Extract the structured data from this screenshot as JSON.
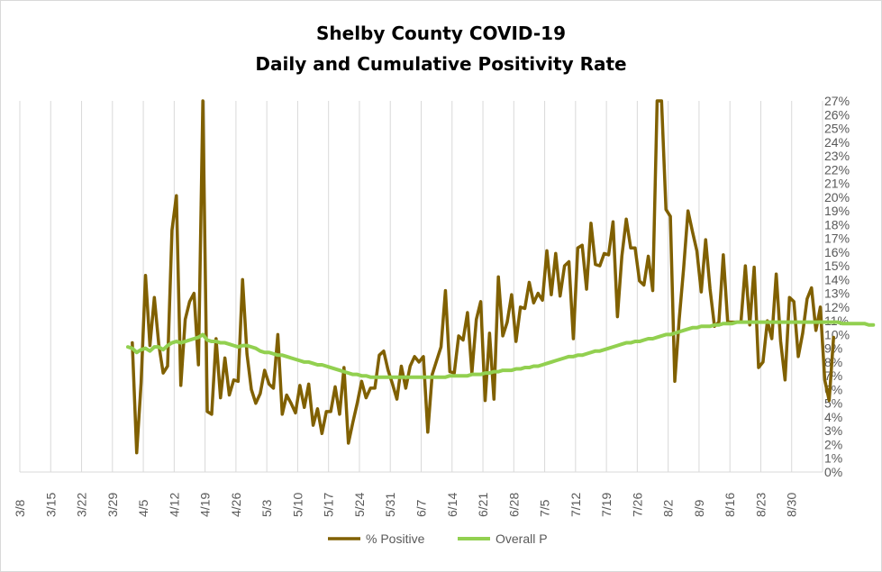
{
  "chart_data": {
    "type": "line",
    "title": "Shelby County COVID-19",
    "subtitle": "Daily and Cumulative Positivity Rate",
    "x_tick_labels": [
      "3/8",
      "3/15",
      "3/22",
      "3/29",
      "4/5",
      "4/12",
      "4/19",
      "4/26",
      "5/3",
      "5/10",
      "5/17",
      "5/24",
      "5/31",
      "6/7",
      "6/14",
      "6/21",
      "6/28",
      "7/5",
      "7/12",
      "7/19",
      "7/26",
      "8/2",
      "8/9",
      "8/16",
      "8/23",
      "8/30"
    ],
    "y_tick_labels": [
      "0%",
      "1%",
      "2%",
      "3%",
      "4%",
      "5%",
      "6%",
      "7%",
      "8%",
      "9%",
      "10%",
      "11%",
      "12%",
      "13%",
      "14%",
      "15%",
      "16%",
      "17%",
      "18%",
      "19%",
      "20%",
      "21%",
      "22%",
      "23%",
      "24%",
      "25%",
      "26%",
      "27%"
    ],
    "ylim": [
      0,
      27
    ],
    "y_axis_position": "right",
    "grid": "vertical",
    "legend": "bottom",
    "x_start": "3/8",
    "series": [
      {
        "name": "% Positive",
        "color": "#806000",
        "values": [
          null,
          null,
          null,
          null,
          null,
          null,
          null,
          null,
          null,
          null,
          null,
          null,
          null,
          null,
          null,
          null,
          null,
          null,
          null,
          null,
          null,
          null,
          null,
          null,
          null,
          9.4,
          1.4,
          6.5,
          14.3,
          9.2,
          12.7,
          9.3,
          7.2,
          7.7,
          17.6,
          20.1,
          6.3,
          11.1,
          12.4,
          13.0,
          7.8,
          27.0,
          4.4,
          4.2,
          9.7,
          5.4,
          8.3,
          5.6,
          6.7,
          6.6,
          14.0,
          8.6,
          6.0,
          5.0,
          5.7,
          7.4,
          6.4,
          6.1,
          10.0,
          4.2,
          5.6,
          5.0,
          4.3,
          6.3,
          4.7,
          6.4,
          3.4,
          4.6,
          2.8,
          4.4,
          4.4,
          6.2,
          4.2,
          7.6,
          2.1,
          3.6,
          5.0,
          6.6,
          5.4,
          6.1,
          6.1,
          8.5,
          8.8,
          7.4,
          6.4,
          5.3,
          7.7,
          6.1,
          7.7,
          8.4,
          8.0,
          8.4,
          2.9,
          7.1,
          8.1,
          9.1,
          13.2,
          7.3,
          7.2,
          9.9,
          9.6,
          11.6,
          7.2,
          11.1,
          12.4,
          5.2,
          10.1,
          5.3,
          14.2,
          9.9,
          10.9,
          12.9,
          9.5,
          12.0,
          11.9,
          13.8,
          12.3,
          13.0,
          12.5,
          16.1,
          12.9,
          15.9,
          12.8,
          15.0,
          15.3,
          9.7,
          16.3,
          16.5,
          13.3,
          18.1,
          15.1,
          15.0,
          15.9,
          15.8,
          18.2,
          11.3,
          15.7,
          18.4,
          16.3,
          16.3,
          13.9,
          13.6,
          15.7,
          13.2,
          27.0,
          27.0,
          19.1,
          18.6,
          6.6,
          11.1,
          14.8,
          19.0,
          17.5,
          16.1,
          13.1,
          16.9,
          13.3,
          10.6,
          10.9,
          15.8,
          10.9,
          10.9,
          10.9,
          10.9,
          15.0,
          10.7,
          14.9,
          7.6,
          8.0,
          11.0,
          9.7,
          14.4,
          9.5,
          6.7,
          12.7,
          12.4,
          8.4,
          10.1,
          12.6,
          13.4,
          10.3,
          12.0,
          6.7,
          5.2,
          9.8
        ]
      },
      {
        "name": "Overall P",
        "color": "#92d050",
        "values": [
          null,
          null,
          null,
          null,
          null,
          null,
          null,
          null,
          null,
          null,
          null,
          null,
          null,
          null,
          null,
          null,
          null,
          null,
          null,
          null,
          null,
          null,
          null,
          null,
          9.1,
          9.0,
          8.7,
          8.9,
          9.0,
          8.8,
          9.1,
          9.1,
          8.9,
          9.2,
          9.4,
          9.5,
          9.4,
          9.5,
          9.6,
          9.7,
          9.8,
          10.0,
          9.6,
          9.5,
          9.5,
          9.4,
          9.4,
          9.3,
          9.2,
          9.1,
          9.2,
          9.2,
          9.1,
          9.0,
          8.8,
          8.7,
          8.7,
          8.6,
          8.5,
          8.5,
          8.4,
          8.3,
          8.2,
          8.1,
          8.0,
          8.0,
          7.9,
          7.8,
          7.8,
          7.7,
          7.6,
          7.5,
          7.4,
          7.3,
          7.2,
          7.1,
          7.1,
          7.0,
          7.0,
          6.9,
          6.9,
          6.9,
          6.9,
          6.9,
          6.9,
          6.9,
          6.9,
          6.9,
          6.9,
          6.9,
          6.9,
          6.9,
          6.9,
          6.9,
          6.9,
          6.9,
          6.9,
          7.0,
          7.0,
          7.0,
          7.0,
          7.0,
          7.1,
          7.1,
          7.1,
          7.2,
          7.2,
          7.3,
          7.3,
          7.4,
          7.4,
          7.4,
          7.5,
          7.5,
          7.6,
          7.6,
          7.7,
          7.7,
          7.8,
          7.9,
          8.0,
          8.1,
          8.2,
          8.3,
          8.4,
          8.4,
          8.5,
          8.5,
          8.6,
          8.7,
          8.8,
          8.8,
          8.9,
          9.0,
          9.1,
          9.2,
          9.3,
          9.4,
          9.4,
          9.5,
          9.5,
          9.6,
          9.7,
          9.7,
          9.8,
          9.9,
          10.0,
          10.0,
          10.1,
          10.2,
          10.3,
          10.4,
          10.5,
          10.5,
          10.6,
          10.6,
          10.6,
          10.7,
          10.7,
          10.8,
          10.8,
          10.8,
          10.9,
          10.9,
          10.9,
          10.9,
          10.9,
          10.9,
          10.9,
          10.9,
          10.9,
          10.9,
          10.9,
          10.9,
          10.9,
          10.9,
          10.9,
          10.9,
          10.9,
          10.9,
          10.9,
          10.9,
          10.9,
          10.9,
          10.9,
          10.9,
          10.8,
          10.8,
          10.8,
          10.8,
          10.8,
          10.8,
          10.7,
          10.7
        ]
      }
    ]
  }
}
